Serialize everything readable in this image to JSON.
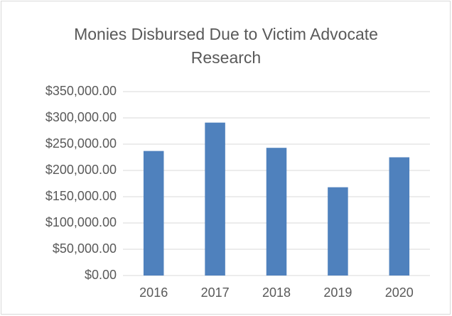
{
  "chart_data": {
    "type": "bar",
    "title": "Monies Disbursed Due to Victim Advocate Research",
    "categories": [
      "2016",
      "2017",
      "2018",
      "2019",
      "2020"
    ],
    "values": [
      237000,
      291000,
      243000,
      168000,
      225000
    ],
    "color": "#4f81bd",
    "ylim": [
      0,
      350000
    ],
    "yticks": [
      {
        "value": 0,
        "label": "$0.00"
      },
      {
        "value": 50000,
        "label": "$50,000.00"
      },
      {
        "value": 100000,
        "label": "$100,000.00"
      },
      {
        "value": 150000,
        "label": "$150,000.00"
      },
      {
        "value": 200000,
        "label": "$200,000.00"
      },
      {
        "value": 250000,
        "label": "$250,000.00"
      },
      {
        "value": 300000,
        "label": "$300,000.00"
      },
      {
        "value": 350000,
        "label": "$350,000.00"
      }
    ],
    "grid": true
  }
}
